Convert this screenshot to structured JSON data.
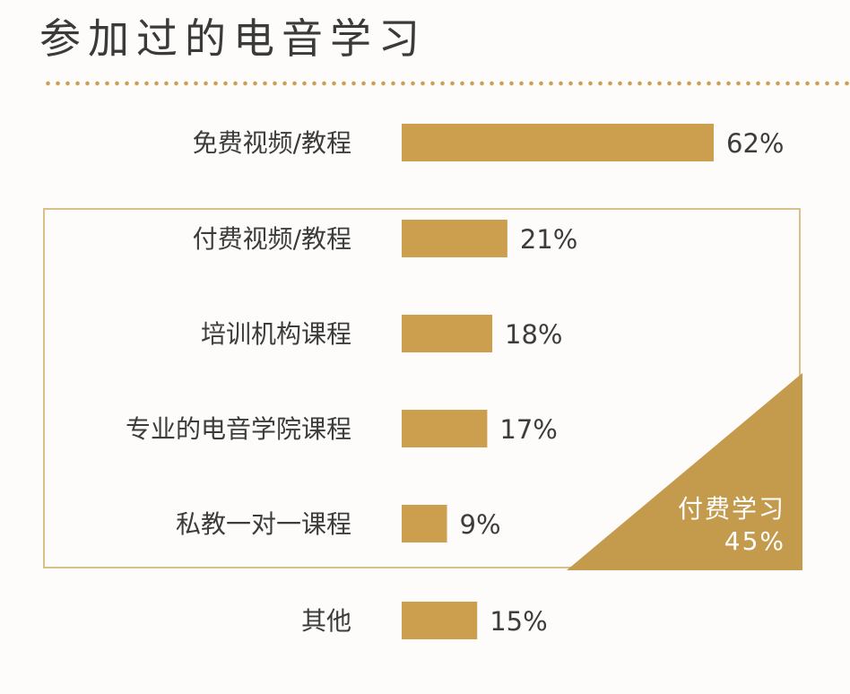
{
  "title": "参加过的电音学习",
  "colors": {
    "bar": "#cc9f4e",
    "accent": "#c49a4c",
    "box_border": "#d9c08a",
    "text": "#3c3c3c"
  },
  "paid_group": {
    "label": "付费学习",
    "value_label": "45%",
    "value": 45
  },
  "chart_data": {
    "type": "bar",
    "orientation": "horizontal",
    "categories": [
      "免费视频/教程",
      "付费视频/教程",
      "培训机构课程",
      "专业的电音学院课程",
      "私教一对一课程",
      "其他"
    ],
    "values": [
      62,
      21,
      18,
      17,
      9,
      15
    ],
    "value_labels": [
      "62%",
      "21%",
      "18%",
      "17%",
      "9%",
      "15%"
    ],
    "unit": "%",
    "xlim": [
      0,
      62
    ],
    "grid": false
  }
}
